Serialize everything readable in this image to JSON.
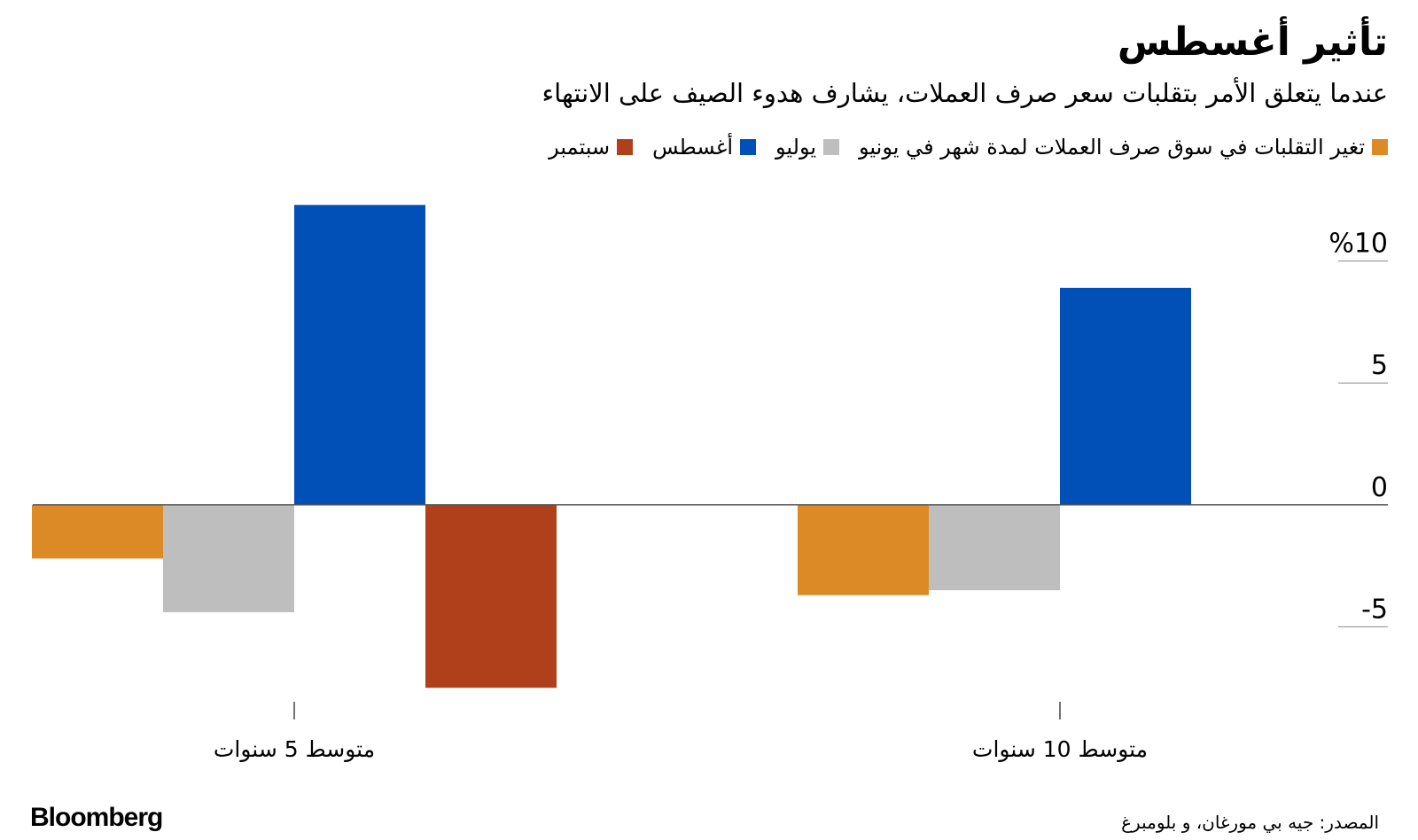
{
  "chart_data": {
    "type": "bar",
    "title": "تأثير أغسطس",
    "subtitle": "عندما يتعلق الأمر بتقلبات سعر صرف العملات، يشارف هدوء الصيف على الانتهاء",
    "categories": [
      "متوسط 5 سنوات",
      "متوسط 10 سنوات"
    ],
    "series": [
      {
        "name": "تغير التقلبات في سوق صرف العملات لمدة شهر في يونيو",
        "color": "#dc8a25",
        "values": [
          -2.2,
          -3.7
        ]
      },
      {
        "name": "يوليو",
        "color": "#bebebe",
        "values": [
          -4.4,
          -3.5
        ]
      },
      {
        "name": "أغسطس",
        "color": "#0050b8",
        "values": [
          12.3,
          8.9
        ]
      },
      {
        "name": "سبتمبر",
        "color": "#b0401c",
        "values": [
          -7.5,
          null
        ]
      }
    ],
    "ylim": [
      -8,
      13
    ],
    "yticks": [
      -5,
      0,
      5,
      {
        "value": 10,
        "label": "%10"
      }
    ],
    "source": "المصدر: جيه بي مورغان، و بلومبرغ",
    "brand": "Bloomberg"
  }
}
